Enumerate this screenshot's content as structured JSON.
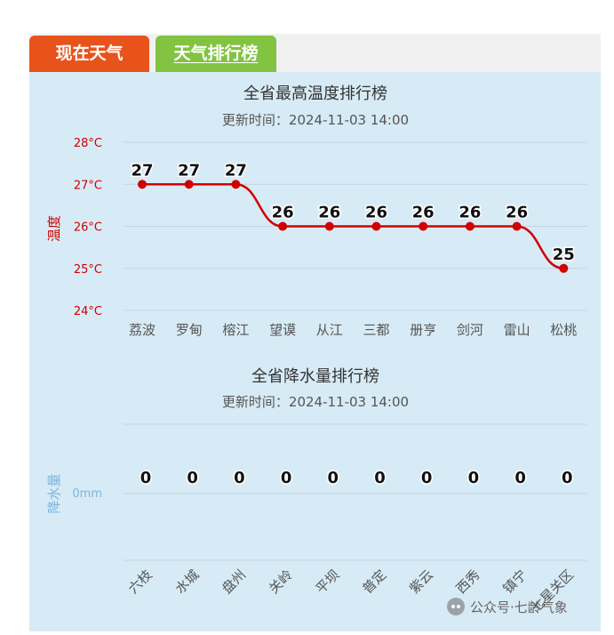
{
  "tabs": [
    {
      "label": "现在天气",
      "active": false,
      "color": "#e8531c"
    },
    {
      "label": "天气排行榜",
      "active": true,
      "color": "#82c341"
    }
  ],
  "temp_chart": {
    "title": "全省最高温度排行榜",
    "subtitle": "更新时间：2024-11-03 14:00",
    "y_axis_label": "温度",
    "y_ticks": [
      "28°C",
      "27°C",
      "26°C",
      "25°C",
      "24°C"
    ],
    "color": "#d10000"
  },
  "precip_chart": {
    "title": "全省降水量排行榜",
    "subtitle": "更新时间：2024-11-03 14:00",
    "y_axis_label": "降水量",
    "y_ticks": [
      "0mm"
    ],
    "color": "#7ab6de"
  },
  "watermark": {
    "text": "公众号·七龄气象",
    "icon": "wechat-icon"
  },
  "chart_data": [
    {
      "type": "line",
      "title": "全省最高温度排行榜",
      "categories": [
        "荔波",
        "罗甸",
        "榕江",
        "望谟",
        "从江",
        "三都",
        "册亨",
        "剑河",
        "雷山",
        "松桃"
      ],
      "values": [
        27,
        27,
        27,
        26,
        26,
        26,
        26,
        26,
        26,
        25
      ],
      "ylabel": "温度",
      "ylim": [
        24,
        28
      ],
      "grid": true
    },
    {
      "type": "line",
      "title": "全省降水量排行榜",
      "categories": [
        "六枝",
        "水城",
        "盘州",
        "关岭",
        "平坝",
        "普定",
        "紫云",
        "西秀",
        "镇宁",
        "七星关区"
      ],
      "values": [
        0,
        0,
        0,
        0,
        0,
        0,
        0,
        0,
        0,
        0
      ],
      "ylabel": "降水量",
      "grid": true
    }
  ]
}
